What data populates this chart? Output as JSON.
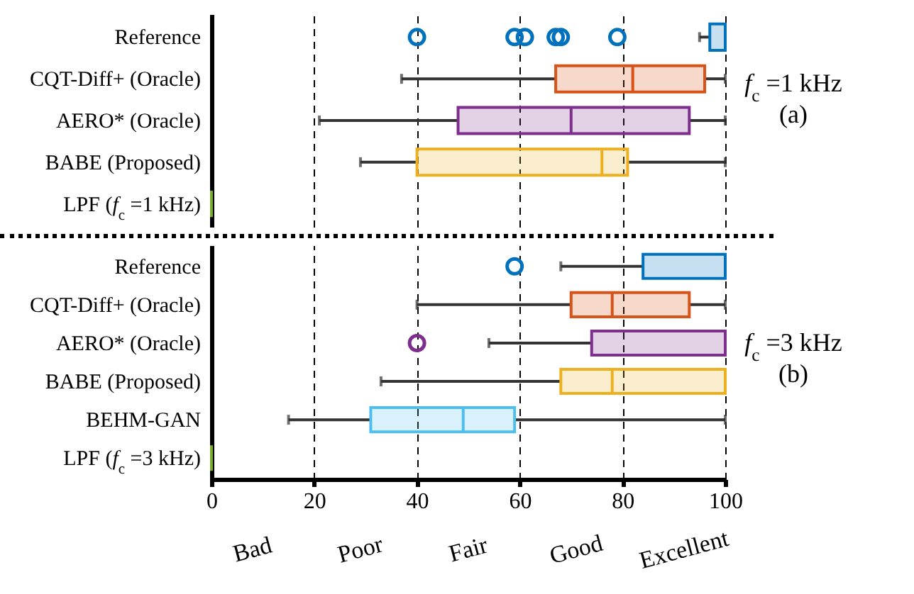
{
  "chart_data": [
    {
      "type": "box",
      "categories": [
        "Reference",
        "CQT-Diff+ (Oracle)",
        "AERO* (Oracle)",
        "BABE (Proposed)",
        "LPF (f$_{c}$ =1 kHz)"
      ],
      "colors": [
        "#0072bd",
        "#d95319",
        "#7e2f8e",
        "#edb120",
        "#77ac30"
      ],
      "boxes": [
        {
          "low": 95,
          "q1": 97,
          "median": 100,
          "q3": 100,
          "high": 100,
          "outliers": [
            40,
            59,
            61,
            67,
            68,
            79
          ]
        },
        {
          "low": 37,
          "q1": 67,
          "median": 82,
          "q3": 96,
          "high": 100
        },
        {
          "low": 21,
          "q1": 48,
          "median": 70,
          "q3": 93,
          "high": 100
        },
        {
          "low": 29,
          "q1": 40,
          "median": 76,
          "q3": 81,
          "high": 100
        },
        {
          "low": 0,
          "q1": 0,
          "median": 0,
          "q3": 0,
          "high": 0
        }
      ],
      "orientation": "horizontal",
      "xlim": [
        0,
        100
      ],
      "xticks": [
        0,
        20,
        40,
        60,
        80,
        100
      ],
      "grid": "x",
      "marker": "circle",
      "tick_labels": "y",
      "annotations": [
        "f$_{c}$ =1 kHz",
        "(a)"
      ]
    },
    {
      "type": "box",
      "categories": [
        "Reference",
        "CQT-Diff+ (Oracle)",
        "AERO* (Oracle)",
        "BABE (Proposed)",
        "BEHM-GAN",
        "LPF (f$_{c}$ =3 kHz)"
      ],
      "colors": [
        "#0072bd",
        "#d95319",
        "#7e2f8e",
        "#edb120",
        "#4dbeee",
        "#77ac30"
      ],
      "boxes": [
        {
          "low": 68,
          "q1": 84,
          "median": 100,
          "q3": 100,
          "high": 100,
          "outliers": [
            59
          ]
        },
        {
          "low": 40,
          "q1": 70,
          "median": 78,
          "q3": 93,
          "high": 100
        },
        {
          "low": 54,
          "q1": 74,
          "median": 100,
          "q3": 100,
          "high": 100,
          "outliers": [
            40
          ]
        },
        {
          "low": 33,
          "q1": 68,
          "median": 78,
          "q3": 100,
          "high": 100
        },
        {
          "low": 15,
          "q1": 31,
          "median": 49,
          "q3": 59,
          "high": 100
        },
        {
          "low": 0,
          "q1": 0,
          "median": 0,
          "q3": 0,
          "high": 0
        }
      ],
      "orientation": "horizontal",
      "xlim": [
        0,
        100
      ],
      "xticks": [
        0,
        20,
        40,
        60,
        80,
        100
      ],
      "grid": "x",
      "marker": "circle",
      "annotations": [
        "f$_{c}$ =3 kHz",
        "(b)",
        "Bad",
        "Poor",
        "Fair",
        "Good",
        "Excellent"
      ]
    }
  ]
}
